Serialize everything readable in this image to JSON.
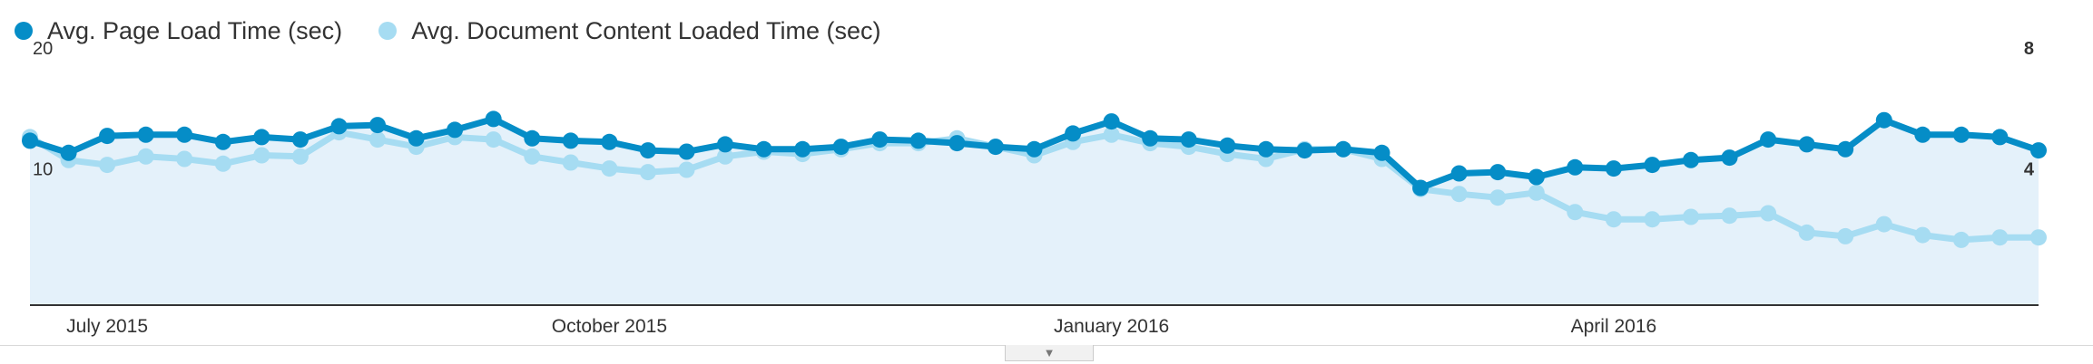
{
  "legend": {
    "series1": "Avg. Page Load Time (sec)",
    "series2": "Avg. Document Content Loaded Time (sec)"
  },
  "colors": {
    "series1": "#058dc7",
    "series2": "#a6dcf2",
    "area": "#e4f1fa",
    "grid": "#dddddd",
    "baseline": "#333333"
  },
  "icons": {
    "collapse": "chevron-down-icon"
  },
  "chart_data": {
    "type": "line",
    "x_labels": [
      "July 2015",
      "October 2015",
      "January 2016",
      "April 2016"
    ],
    "x_label_index": [
      2,
      15,
      28,
      41
    ],
    "left_axis": {
      "ticks": [
        "20",
        "10"
      ],
      "max": 20,
      "min": 0
    },
    "right_axis": {
      "ticks": [
        "8",
        "4"
      ],
      "max": 8,
      "min": 0
    },
    "grid": true,
    "legend_position": "top-left",
    "series": [
      {
        "name": "Avg. Page Load Time (sec)",
        "axis": "left",
        "values": [
          13.6,
          12.6,
          14.0,
          14.1,
          14.1,
          13.5,
          13.9,
          13.7,
          14.8,
          14.9,
          13.8,
          14.5,
          15.4,
          13.8,
          13.6,
          13.5,
          12.8,
          12.7,
          13.3,
          12.9,
          12.9,
          13.1,
          13.7,
          13.6,
          13.4,
          13.1,
          12.9,
          14.2,
          15.2,
          13.8,
          13.7,
          13.2,
          12.9,
          12.8,
          12.9,
          12.6,
          9.7,
          10.9,
          11.0,
          10.6,
          11.4,
          11.3,
          11.6,
          12.0,
          12.2,
          13.7,
          13.3,
          12.9,
          15.3,
          14.1,
          14.1,
          13.9,
          12.8
        ]
      },
      {
        "name": "Avg. Document Content Loaded Time (sec)",
        "axis": "left",
        "values": [
          13.9,
          12.0,
          11.6,
          12.3,
          12.1,
          11.7,
          12.4,
          12.3,
          14.3,
          13.7,
          13.1,
          13.9,
          13.7,
          12.3,
          11.8,
          11.3,
          11.0,
          11.2,
          12.3,
          12.7,
          12.5,
          12.9,
          13.4,
          13.4,
          13.8,
          13.1,
          12.4,
          13.5,
          14.1,
          13.4,
          13.1,
          12.5,
          12.1,
          12.9,
          12.9,
          12.1,
          9.6,
          9.2,
          8.9,
          9.3,
          7.7,
          7.1,
          7.1,
          7.3,
          7.4,
          7.6,
          6.0,
          5.7,
          6.7,
          5.8,
          5.4,
          5.6,
          5.6
        ]
      }
    ]
  }
}
